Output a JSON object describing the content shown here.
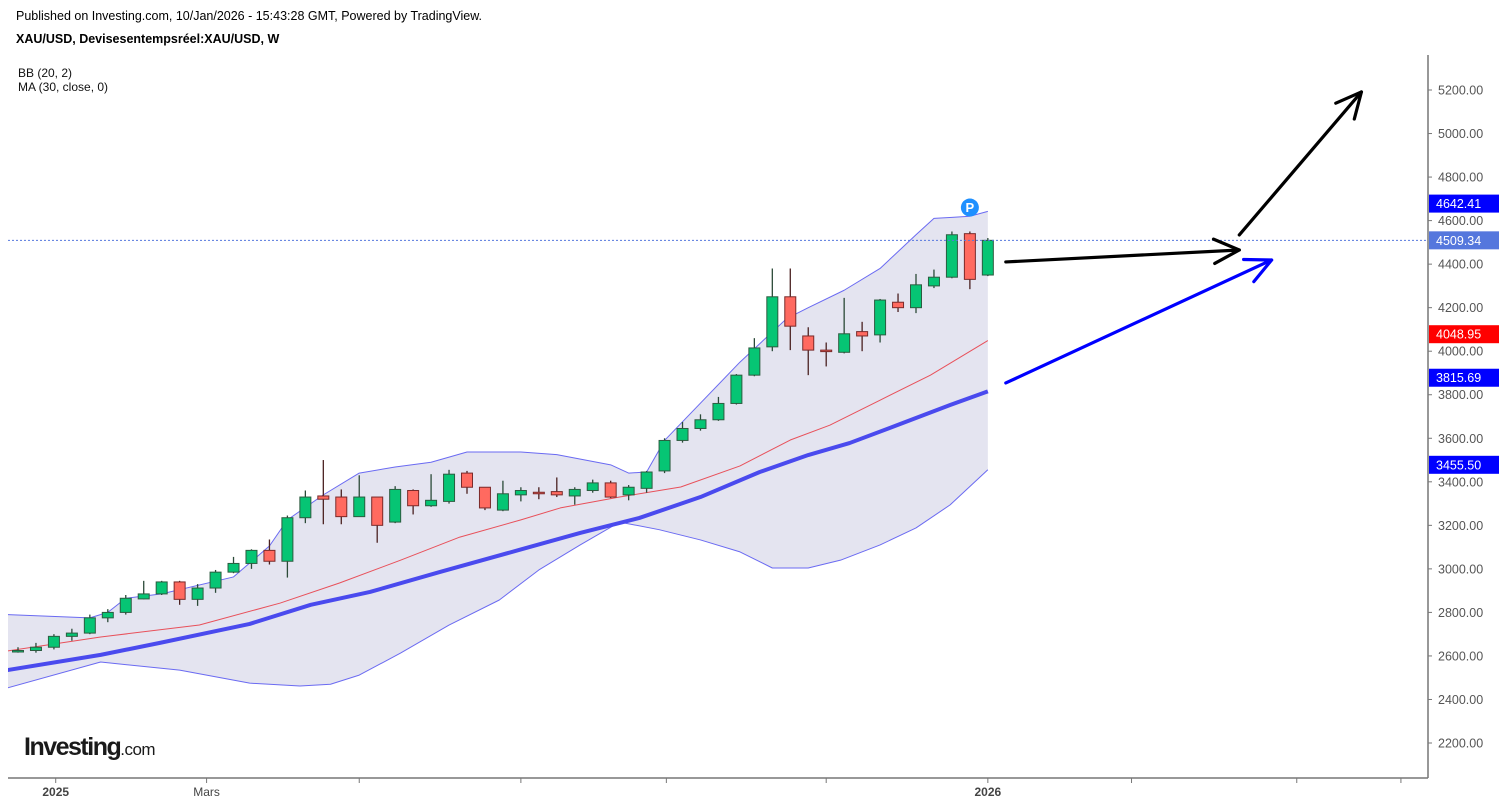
{
  "header": {
    "published": "Published on Investing.com, 10/Jan/2026 - 15:43:28 GMT, Powered by TradingView.",
    "symbol": "XAU/USD, Devisesentempsréel:XAU/USD, W"
  },
  "indicators": [
    "BB (20, 2)",
    "MA (30, close, 0)"
  ],
  "logo": {
    "main": "Investing",
    "suffix": ".com"
  },
  "colors": {
    "up": "#06c574",
    "down": "#ff6a60",
    "wick": "#2b4a38",
    "band_fill": "#e4e4f0",
    "band_line": "#6a6af2",
    "basis": "#e8505a",
    "ma": "#4a4aee",
    "badge_blue": "#0000ff",
    "badge_last": "#5577dd",
    "badge_red": "#ff0000",
    "marker": "#1e90ff"
  },
  "chart_data": {
    "type": "candlestick",
    "title": "XAU/USD, W",
    "ylim": [
      2100,
      5300
    ],
    "yticks": [
      2200,
      2400,
      2600,
      2800,
      3000,
      3200,
      3400,
      3600,
      3800,
      4000,
      4200,
      4400,
      4600,
      4800,
      5000,
      5200
    ],
    "xticks": [
      {
        "week": 2.1,
        "label": "2025",
        "bold": true
      },
      {
        "week": 10.5,
        "label": "Mars",
        "bold": false
      },
      {
        "week": 19,
        "label": "",
        "bold": false
      },
      {
        "week": 28,
        "label": "",
        "bold": false
      },
      {
        "week": 36.1,
        "label": "",
        "bold": false
      },
      {
        "week": 45,
        "label": "",
        "bold": false
      },
      {
        "week": 54,
        "label": "2026",
        "bold": true
      },
      {
        "week": 62,
        "label": "",
        "bold": false
      },
      {
        "week": 71.2,
        "label": "",
        "bold": false
      },
      {
        "week": 77,
        "label": "",
        "bold": false
      }
    ],
    "ohlc": [
      [
        2620,
        2625,
        2640,
        2615
      ],
      [
        2625,
        2640,
        2660,
        2615
      ],
      [
        2640,
        2690,
        2700,
        2630
      ],
      [
        2690,
        2705,
        2725,
        2670
      ],
      [
        2705,
        2775,
        2790,
        2700
      ],
      [
        2775,
        2800,
        2815,
        2755
      ],
      [
        2800,
        2865,
        2880,
        2790
      ],
      [
        2862,
        2885,
        2945,
        2860
      ],
      [
        2885,
        2940,
        2945,
        2880
      ],
      [
        2940,
        2860,
        2945,
        2835
      ],
      [
        2860,
        2912,
        2930,
        2830
      ],
      [
        2912,
        2985,
        2995,
        2890
      ],
      [
        2985,
        3025,
        3055,
        2980
      ],
      [
        3025,
        3085,
        3090,
        3000
      ],
      [
        3085,
        3035,
        3135,
        3020
      ],
      [
        3035,
        3235,
        3245,
        2960
      ],
      [
        3235,
        3330,
        3360,
        3210
      ],
      [
        3335,
        3320,
        3500,
        3205
      ],
      [
        3330,
        3240,
        3365,
        3205
      ],
      [
        3240,
        3330,
        3430,
        3240
      ],
      [
        3330,
        3200,
        3330,
        3120
      ],
      [
        3215,
        3365,
        3380,
        3210
      ],
      [
        3360,
        3290,
        3365,
        3250
      ],
      [
        3290,
        3315,
        3435,
        3285
      ],
      [
        3310,
        3435,
        3455,
        3300
      ],
      [
        3440,
        3375,
        3450,
        3345
      ],
      [
        3375,
        3280,
        3375,
        3270
      ],
      [
        3270,
        3345,
        3405,
        3265
      ],
      [
        3340,
        3360,
        3375,
        3310
      ],
      [
        3352,
        3348,
        3375,
        3320
      ],
      [
        3355,
        3340,
        3420,
        3330
      ],
      [
        3335,
        3365,
        3375,
        3295
      ],
      [
        3360,
        3395,
        3410,
        3350
      ],
      [
        3395,
        3330,
        3405,
        3325
      ],
      [
        3340,
        3375,
        3385,
        3315
      ],
      [
        3370,
        3445,
        3450,
        3350
      ],
      [
        3450,
        3590,
        3600,
        3440
      ],
      [
        3590,
        3645,
        3675,
        3580
      ],
      [
        3645,
        3685,
        3710,
        3635
      ],
      [
        3685,
        3760,
        3790,
        3680
      ],
      [
        3760,
        3890,
        3895,
        3755
      ],
      [
        3890,
        4015,
        4060,
        3885
      ],
      [
        4020,
        4250,
        4380,
        4000
      ],
      [
        4250,
        4115,
        4380,
        4005
      ],
      [
        4070,
        4005,
        4110,
        3890
      ],
      [
        4005,
        4000,
        4040,
        3930
      ],
      [
        3995,
        4080,
        4245,
        3990
      ],
      [
        4090,
        4070,
        4135,
        4000
      ],
      [
        4075,
        4235,
        4240,
        4040
      ],
      [
        4225,
        4200,
        4265,
        4180
      ],
      [
        4200,
        4305,
        4355,
        4175
      ],
      [
        4300,
        4340,
        4375,
        4290
      ],
      [
        4340,
        4535,
        4550,
        4335
      ],
      [
        4540,
        4330,
        4550,
        4285
      ],
      [
        4350,
        4509.34,
        4520,
        4345
      ]
    ],
    "series": [
      {
        "name": "BB upper",
        "points": [
          [
            -0.6,
            2790
          ],
          [
            4,
            2775
          ],
          [
            5,
            2800
          ],
          [
            6,
            2865
          ],
          [
            8,
            2885
          ],
          [
            12,
            2963
          ],
          [
            14,
            3105
          ],
          [
            15,
            3225
          ],
          [
            17,
            3340
          ],
          [
            19,
            3440
          ],
          [
            21,
            3468
          ],
          [
            23,
            3490
          ],
          [
            25,
            3537
          ],
          [
            28,
            3537
          ],
          [
            30,
            3525
          ],
          [
            33,
            3478
          ],
          [
            34,
            3440
          ],
          [
            35,
            3445
          ],
          [
            36,
            3590
          ],
          [
            37.4,
            3710
          ],
          [
            40.2,
            3950
          ],
          [
            42.8,
            4150
          ],
          [
            44,
            4200
          ],
          [
            46,
            4280
          ],
          [
            48,
            4380
          ],
          [
            50,
            4535
          ],
          [
            51,
            4610
          ],
          [
            52,
            4615
          ],
          [
            53,
            4620
          ],
          [
            54,
            4642.41
          ]
        ]
      },
      {
        "name": "BB lower",
        "points": [
          [
            -0.6,
            2453
          ],
          [
            4.6,
            2572
          ],
          [
            9,
            2535
          ],
          [
            12.9,
            2475
          ],
          [
            15.7,
            2462
          ],
          [
            17.4,
            2470
          ],
          [
            19,
            2512
          ],
          [
            21.3,
            2613
          ],
          [
            24,
            2742
          ],
          [
            26.8,
            2857
          ],
          [
            29,
            2995
          ],
          [
            31.3,
            3110
          ],
          [
            33.5,
            3215
          ],
          [
            35.7,
            3180
          ],
          [
            38,
            3133
          ],
          [
            40.2,
            3078
          ],
          [
            42,
            3004
          ],
          [
            44,
            3004
          ],
          [
            45.8,
            3040
          ],
          [
            48,
            3110
          ],
          [
            50,
            3188
          ],
          [
            51.9,
            3294
          ],
          [
            54,
            3455.5
          ]
        ]
      },
      {
        "name": "BB basis",
        "points": [
          [
            -0.6,
            2623
          ],
          [
            4.6,
            2687
          ],
          [
            10.1,
            2742
          ],
          [
            14.6,
            2843
          ],
          [
            17.9,
            2935
          ],
          [
            21.3,
            3040
          ],
          [
            24.6,
            3146
          ],
          [
            28,
            3225
          ],
          [
            30.2,
            3280
          ],
          [
            33.5,
            3330
          ],
          [
            36.9,
            3376
          ],
          [
            40.2,
            3473
          ],
          [
            43,
            3592
          ],
          [
            45.2,
            3660
          ],
          [
            48,
            3775
          ],
          [
            50.8,
            3890
          ],
          [
            54,
            4048.95
          ]
        ]
      },
      {
        "name": "MA 30",
        "points": [
          [
            -0.6,
            2535
          ],
          [
            4.6,
            2605
          ],
          [
            7.9,
            2660
          ],
          [
            12.9,
            2747
          ],
          [
            16.3,
            2835
          ],
          [
            19.6,
            2894
          ],
          [
            23.5,
            2986
          ],
          [
            27.9,
            3087
          ],
          [
            31.3,
            3165
          ],
          [
            34.6,
            3234
          ],
          [
            38,
            3330
          ],
          [
            41.3,
            3445
          ],
          [
            44,
            3523
          ],
          [
            46.3,
            3578
          ],
          [
            49.1,
            3665
          ],
          [
            51.9,
            3753
          ],
          [
            54,
            3815.69
          ]
        ]
      }
    ],
    "price_labels": [
      {
        "value": 4642.41,
        "text": "4642.41",
        "kind": "blue"
      },
      {
        "value": 4509.34,
        "text": "4509.34",
        "kind": "last"
      },
      {
        "value": 4048.95,
        "text": "4048.95",
        "kind": "red"
      },
      {
        "value": 3815.69,
        "text": "3815.69",
        "kind": "blue"
      },
      {
        "value": 3455.5,
        "text": "3455.50",
        "kind": "blue"
      }
    ],
    "last_price": 4509.34,
    "marker": {
      "week": 53,
      "value": 4660,
      "text": "P"
    },
    "drawings": [
      {
        "name": "black-arrow-flat",
        "color": "#000000",
        "from": [
          55,
          4410
        ],
        "to": [
          68,
          4465
        ]
      },
      {
        "name": "black-arrow-up",
        "color": "#000000",
        "from": [
          68,
          4534
        ],
        "to": [
          74.8,
          5191
        ]
      },
      {
        "name": "blue-arrow",
        "color": "#0000ff",
        "from": [
          55,
          3854
        ],
        "to": [
          69.8,
          4419
        ]
      }
    ]
  }
}
